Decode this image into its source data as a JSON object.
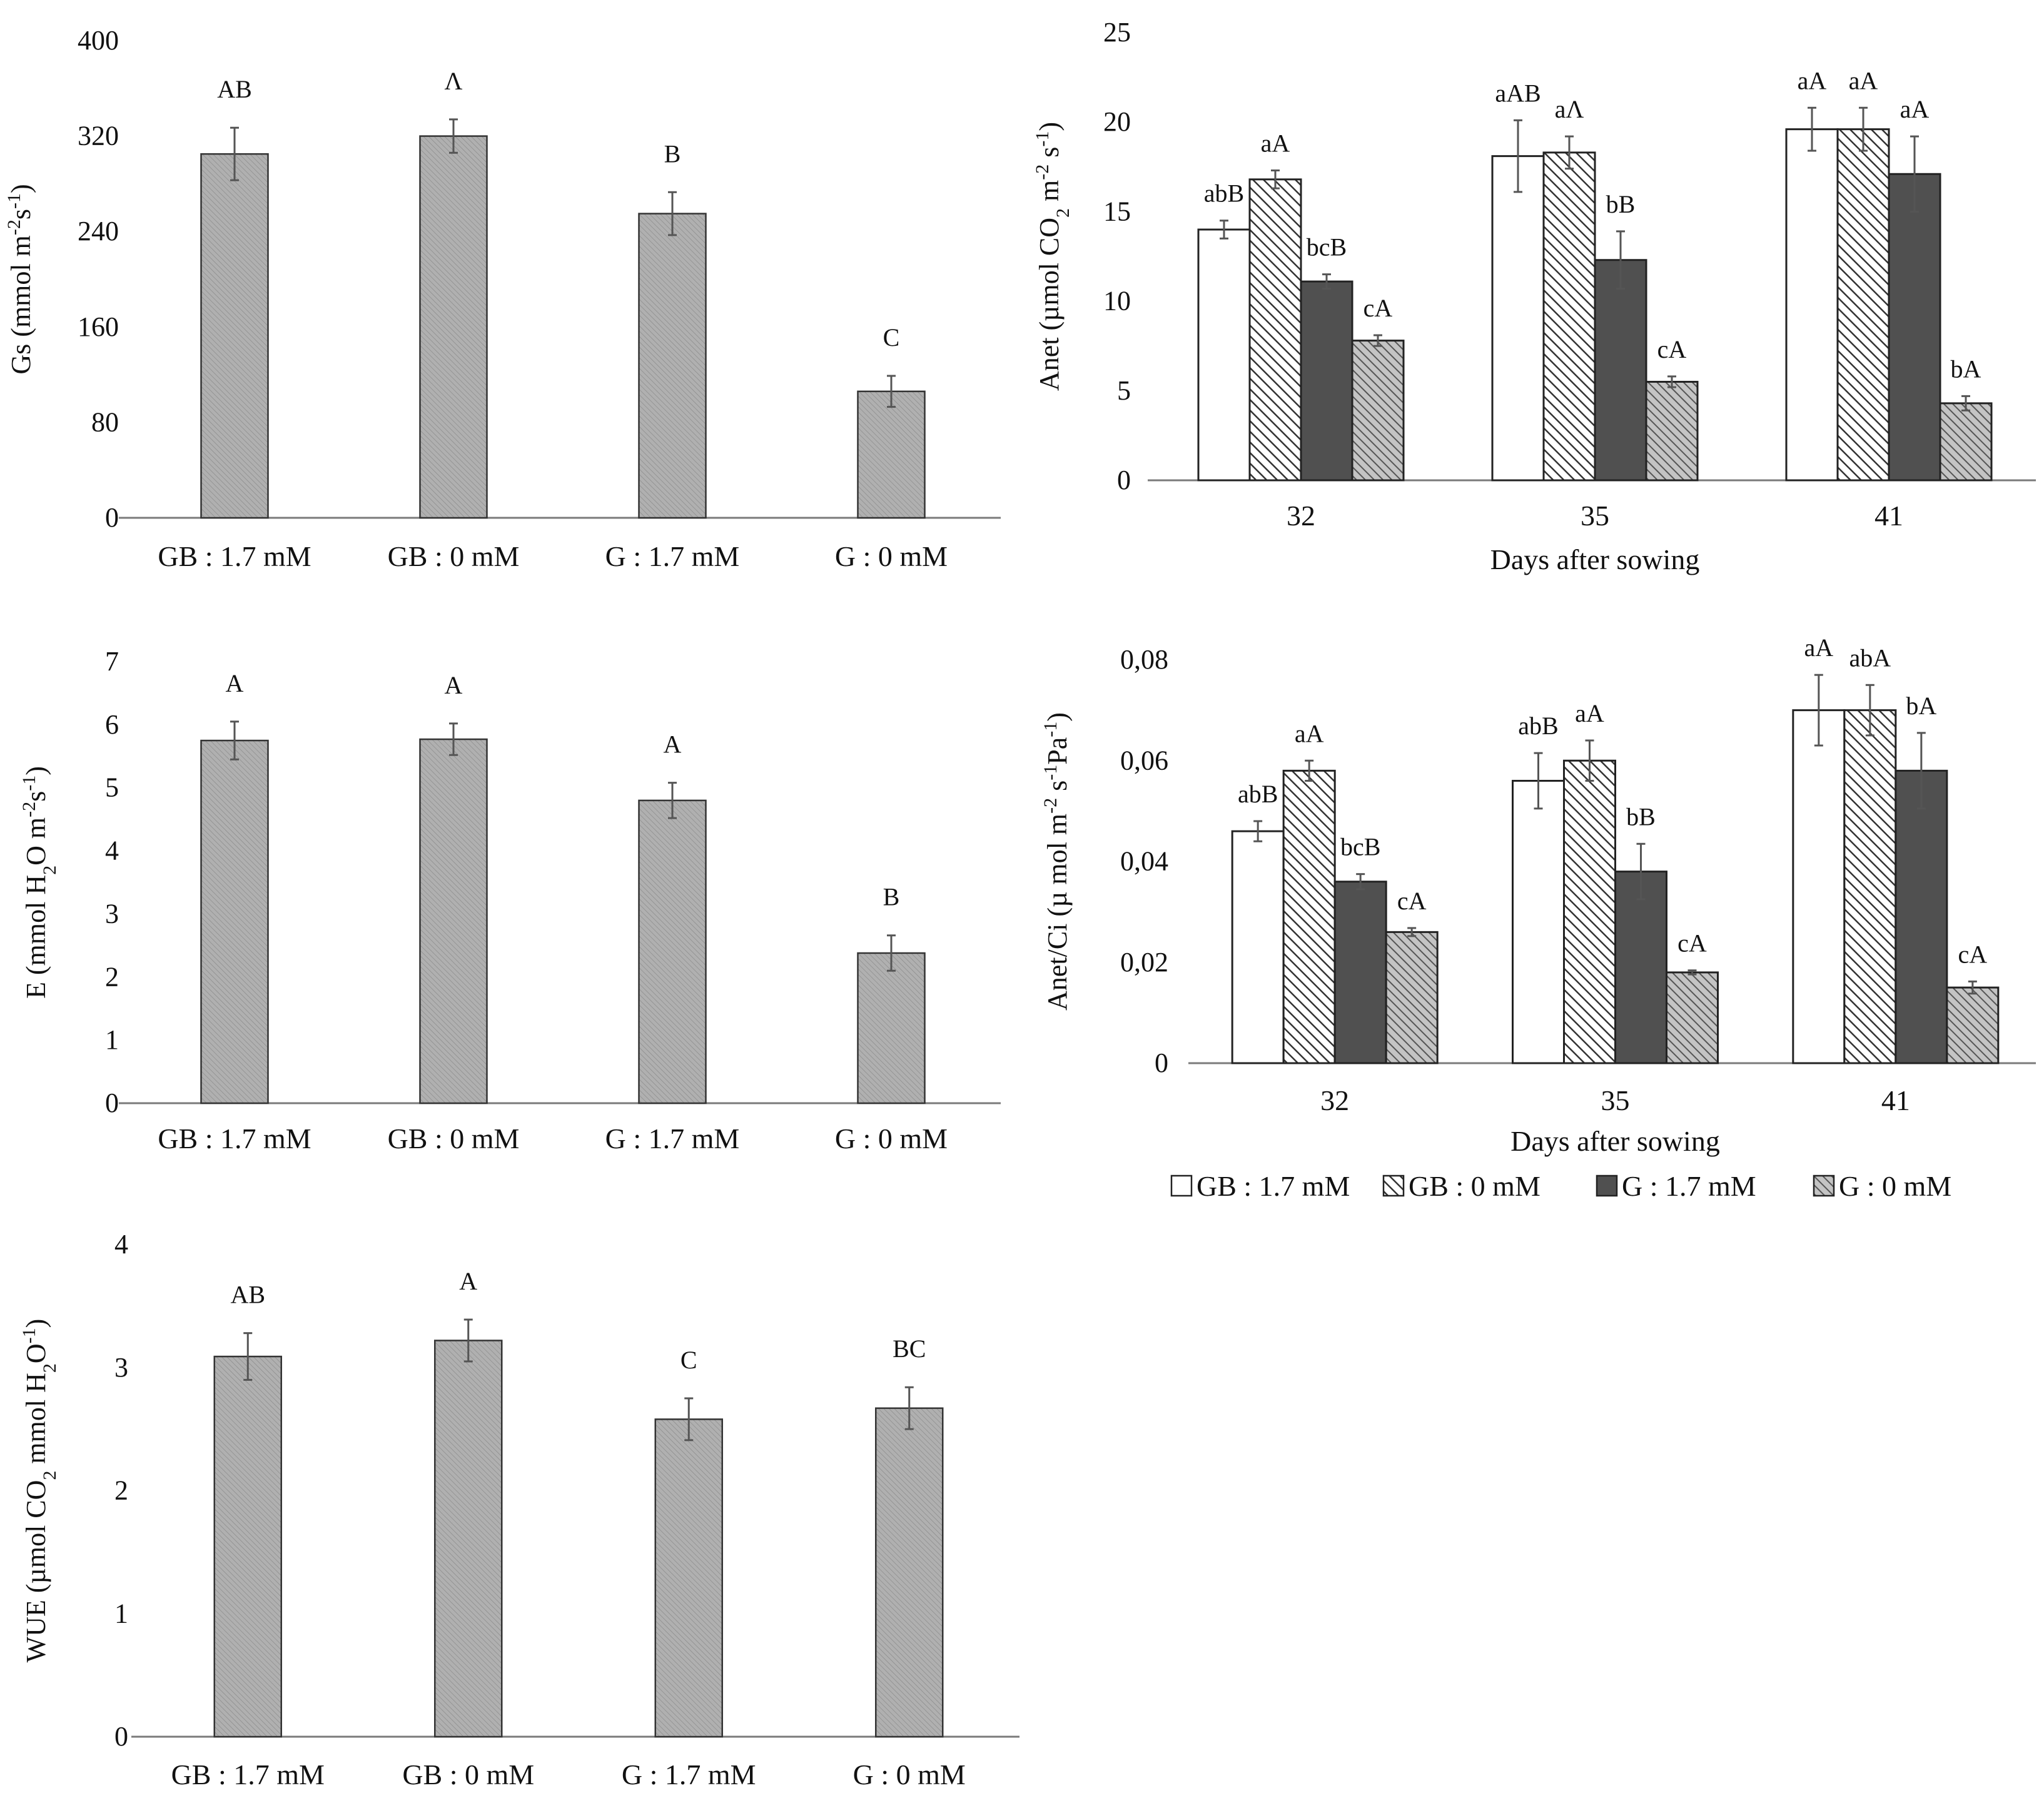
{
  "colors": {
    "single_bar": "#a8a8a8",
    "white_bar": "#ffffff",
    "dark_bar": "#505050",
    "hatch_stroke": "#333333",
    "axis": "#7a7a7a",
    "error": "#555555"
  },
  "chart_data": [
    {
      "id": "gs",
      "type": "bar",
      "ylabel": {
        "pre": "Gs (mmol m",
        "sup1": "-2",
        "mid": "s",
        "sup2": "-1",
        "post": ")"
      },
      "categories": [
        "GB : 1.7 mM",
        "GB : 0 mM",
        "G : 1.7 mM",
        "G : 0 mM"
      ],
      "values": [
        305,
        320,
        255,
        106
      ],
      "errors": [
        22,
        14,
        18,
        13
      ],
      "letters": [
        "AB",
        "Λ",
        "B",
        "C"
      ],
      "ylim": [
        0,
        400
      ],
      "yticks": [
        "0",
        "80",
        "160",
        "240",
        "320",
        "400"
      ]
    },
    {
      "id": "e",
      "type": "bar",
      "ylabel": {
        "pre": "E (mmol H",
        "sub1": "2",
        "mid": "O m",
        "sup1": "-2",
        "mid2": "s",
        "sup2": "-1",
        "post": ")"
      },
      "categories": [
        "GB : 1.7 mM",
        "GB : 0 mM",
        "G : 1.7 mM",
        "G : 0 mM"
      ],
      "values": [
        5.75,
        5.77,
        4.8,
        2.38
      ],
      "errors": [
        0.3,
        0.25,
        0.28,
        0.28
      ],
      "letters": [
        "A",
        "A",
        "A",
        "B"
      ],
      "ylim": [
        0,
        7
      ],
      "yticks": [
        "0",
        "1",
        "2",
        "3",
        "4",
        "5",
        "6",
        "7"
      ]
    },
    {
      "id": "wue",
      "type": "bar",
      "ylabel": {
        "pre": "WUE (µmol CO",
        "sub1": "2",
        "mid": " mmol H",
        "sub2": "2",
        "mid2": "O",
        "sup1": "-1",
        "post": ")"
      },
      "categories": [
        "GB : 1.7 mM",
        "GB : 0 mM",
        "G : 1.7 mM",
        "G : 0 mM"
      ],
      "values": [
        3.09,
        3.22,
        2.58,
        2.67
      ],
      "errors": [
        0.19,
        0.17,
        0.17,
        0.17
      ],
      "letters": [
        "AB",
        "A",
        "C",
        "BC"
      ],
      "ylim": [
        0,
        4
      ],
      "yticks": [
        "0",
        "1",
        "2",
        "3",
        "4"
      ]
    },
    {
      "id": "anet",
      "type": "bar",
      "ylabel": {
        "pre": "Anet (µmol CO",
        "sub1": "2",
        "mid": " m",
        "sup1": "-2",
        "mid2": " s",
        "sup2": "-1",
        "post": ")"
      },
      "xlabel": "Days after sowing",
      "categories": [
        "32",
        "35",
        "41"
      ],
      "ylim": [
        0,
        25
      ],
      "yticks": [
        "0",
        "5",
        "10",
        "15",
        "20",
        "25"
      ],
      "series": [
        {
          "name": "GB : 1.7 mM",
          "values": [
            14.0,
            18.1,
            19.6
          ],
          "errors": [
            0.5,
            2.0,
            1.2
          ],
          "letters": [
            "abB",
            "aAB",
            "aA"
          ]
        },
        {
          "name": "GB : 0 mM",
          "values": [
            16.8,
            18.3,
            19.6
          ],
          "errors": [
            0.5,
            0.9,
            1.2
          ],
          "letters": [
            "aA",
            "aΛ",
            "aA"
          ]
        },
        {
          "name": "G : 1.7 mM",
          "values": [
            11.1,
            12.3,
            17.1
          ],
          "errors": [
            0.4,
            1.6,
            2.1
          ],
          "letters": [
            "bcB",
            "bB",
            "aA"
          ]
        },
        {
          "name": "G : 0 mM",
          "values": [
            7.8,
            5.5,
            4.3
          ],
          "errors": [
            0.3,
            0.3,
            0.4
          ],
          "letters": [
            "cA",
            "cA",
            "bA"
          ]
        }
      ]
    },
    {
      "id": "anetci",
      "type": "bar",
      "ylabel": {
        "pre": "Anet/Ci (µ mol m",
        "sup1": "-2",
        "mid": " s",
        "sup2": "-1",
        "mid2": "Pa",
        "sup3": "-1",
        "post": ")"
      },
      "xlabel": "Days after sowing",
      "categories": [
        "32",
        "35",
        "41"
      ],
      "ylim": [
        0,
        0.08
      ],
      "yticks": [
        "0",
        "0,02",
        "0,04",
        "0,06",
        "0,08"
      ],
      "series": [
        {
          "name": "GB : 1.7 mM",
          "values": [
            0.046,
            0.056,
            0.07
          ],
          "errors": [
            0.002,
            0.0055,
            0.007
          ],
          "letters": [
            "abB",
            "abB",
            "aA"
          ]
        },
        {
          "name": "GB : 0 mM",
          "values": [
            0.058,
            0.06,
            0.07
          ],
          "errors": [
            0.002,
            0.004,
            0.005
          ],
          "letters": [
            "aA",
            "aA",
            "abA"
          ]
        },
        {
          "name": "G : 1.7 mM",
          "values": [
            0.036,
            0.038,
            0.058
          ],
          "errors": [
            0.0015,
            0.0055,
            0.0075
          ],
          "letters": [
            "bcB",
            "bB",
            "bA"
          ]
        },
        {
          "name": "G : 0 mM",
          "values": [
            0.026,
            0.018,
            0.015
          ],
          "errors": [
            0.0008,
            0.0004,
            0.0012
          ],
          "letters": [
            "cA",
            "cA",
            "cA"
          ]
        }
      ]
    }
  ],
  "legend": {
    "items": [
      "GB : 1.7 mM",
      "GB : 0 mM",
      "G : 1.7 mM",
      "G : 0 mM"
    ]
  }
}
